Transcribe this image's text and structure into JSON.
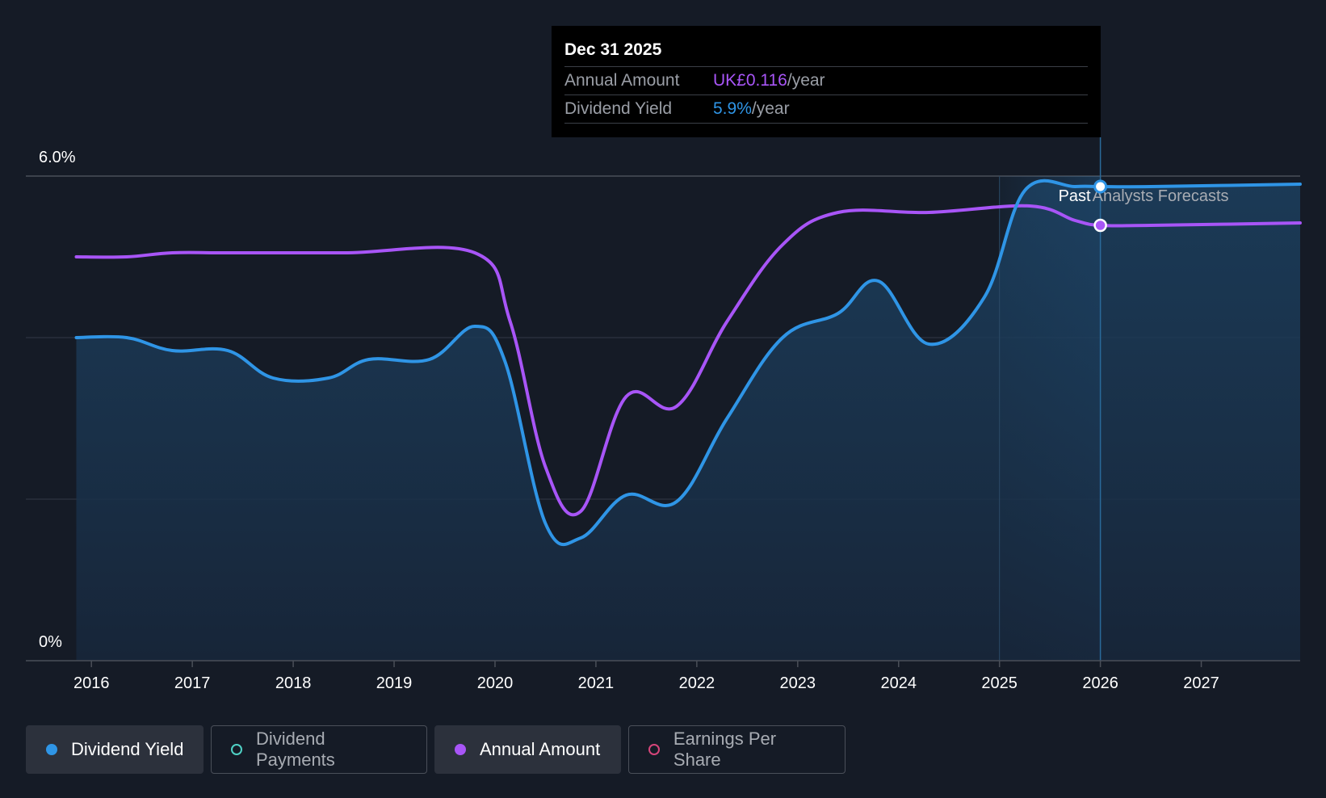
{
  "chart_data": {
    "type": "line",
    "title": "",
    "xlabel": "",
    "ylabel": "",
    "ylim": [
      0,
      6
    ],
    "y_axis": {
      "top_label": "6.0%",
      "bottom_label": "0%"
    },
    "x_ticks": [
      "2016",
      "2017",
      "2018",
      "2019",
      "2020",
      "2021",
      "2022",
      "2023",
      "2024",
      "2025",
      "2026",
      "2027"
    ],
    "x_tick_values": [
      2016,
      2017,
      2018,
      2019,
      2020,
      2021,
      2022,
      2023,
      2024,
      2025,
      2026,
      2027
    ],
    "xlim": [
      2015.35,
      2027.98
    ],
    "regions": {
      "past_label": "Past",
      "forecast_label": "Analysts Forecasts",
      "past_start": 2025,
      "forecast_start": 2026
    },
    "series": [
      {
        "name": "Dividend Yield",
        "color": "#2f95e6",
        "filled": true,
        "points": [
          [
            2015.85,
            4.0
          ],
          [
            2016.35,
            4.0
          ],
          [
            2016.8,
            3.84
          ],
          [
            2017.35,
            3.84
          ],
          [
            2017.8,
            3.5
          ],
          [
            2018.35,
            3.5
          ],
          [
            2018.75,
            3.73
          ],
          [
            2019.35,
            3.73
          ],
          [
            2019.8,
            4.14
          ],
          [
            2020.1,
            3.7
          ],
          [
            2020.5,
            1.7
          ],
          [
            2020.85,
            1.52
          ],
          [
            2021.3,
            2.05
          ],
          [
            2021.8,
            1.97
          ],
          [
            2022.3,
            3.0
          ],
          [
            2022.85,
            4.0
          ],
          [
            2023.4,
            4.3
          ],
          [
            2023.8,
            4.7
          ],
          [
            2024.3,
            3.92
          ],
          [
            2024.85,
            4.5
          ],
          [
            2025.25,
            5.82
          ],
          [
            2025.75,
            5.87
          ],
          [
            2026.0,
            5.87
          ],
          [
            2026.5,
            5.87
          ],
          [
            2027.98,
            5.9
          ]
        ]
      },
      {
        "name": "Annual Amount",
        "color": "#a855f7",
        "filled": false,
        "points": [
          [
            2015.85,
            5.0
          ],
          [
            2016.35,
            5.0
          ],
          [
            2016.8,
            5.05
          ],
          [
            2017.35,
            5.05
          ],
          [
            2018.5,
            5.05
          ],
          [
            2019.8,
            5.05
          ],
          [
            2020.15,
            4.2
          ],
          [
            2020.5,
            2.4
          ],
          [
            2020.85,
            1.85
          ],
          [
            2021.3,
            3.27
          ],
          [
            2021.8,
            3.15
          ],
          [
            2022.3,
            4.2
          ],
          [
            2022.85,
            5.15
          ],
          [
            2023.4,
            5.55
          ],
          [
            2024.3,
            5.55
          ],
          [
            2025.3,
            5.63
          ],
          [
            2025.75,
            5.45
          ],
          [
            2026.0,
            5.39
          ],
          [
            2026.5,
            5.39
          ],
          [
            2027.98,
            5.42
          ]
        ]
      }
    ],
    "highlight": {
      "x": 2026.0,
      "yield": 5.87,
      "amount": 5.39
    }
  },
  "tooltip": {
    "date": "Dec 31 2025",
    "rows": [
      {
        "label": "Annual Amount",
        "value": "UK£0.116",
        "unit": "/year"
      },
      {
        "label": "Dividend Yield",
        "value": "5.9%",
        "unit": "/year"
      }
    ]
  },
  "legend": [
    {
      "label": "Dividend Yield",
      "color": "#2f95e6",
      "active": true,
      "filled": true
    },
    {
      "label": "Dividend Payments",
      "color": "#4fd1c5",
      "active": false,
      "filled": false
    },
    {
      "label": "Annual Amount",
      "color": "#a855f7",
      "active": true,
      "filled": true
    },
    {
      "label": "Earnings Per Share",
      "color": "#d6457a",
      "active": false,
      "filled": false
    }
  ]
}
